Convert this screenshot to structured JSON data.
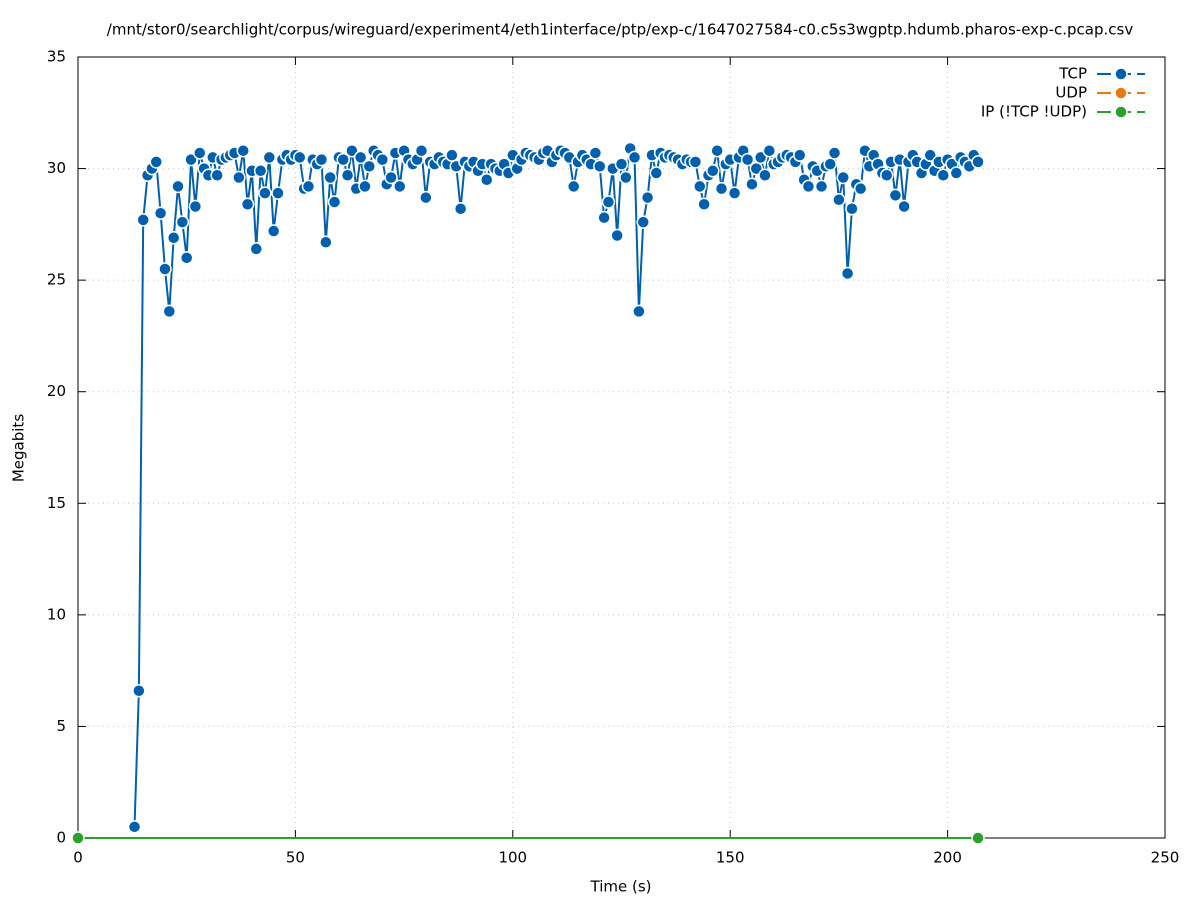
{
  "chart_data": {
    "type": "line",
    "title": "/mnt/stor0/searchlight/corpus/wireguard/experiment4/eth1interface/ptp/exp-c/1647027584-c0.c5s3wgptp.hdumb.pharos-exp-c.pcap.csv",
    "xlabel": "Time (s)",
    "ylabel": "Megabits",
    "xlim": [
      0,
      250
    ],
    "xticks": [
      0,
      50,
      100,
      150,
      200,
      250
    ],
    "ylim": [
      0,
      35
    ],
    "yticks": [
      0,
      5,
      10,
      15,
      20,
      25,
      30,
      35
    ],
    "grid": true,
    "legend": "top-right",
    "series": [
      {
        "name": "TCP",
        "color": "#0060ad",
        "x": [
          13,
          14,
          15,
          16,
          17,
          18,
          19,
          20,
          21,
          22,
          23,
          24,
          25,
          26,
          27,
          28,
          29,
          30,
          31,
          32,
          33,
          34,
          35,
          36,
          37,
          38,
          39,
          40,
          41,
          42,
          43,
          44,
          45,
          46,
          47,
          48,
          49,
          50,
          51,
          52,
          53,
          54,
          55,
          56,
          57,
          58,
          59,
          60,
          61,
          62,
          63,
          64,
          65,
          66,
          67,
          68,
          69,
          70,
          71,
          72,
          73,
          74,
          75,
          76,
          77,
          78,
          79,
          80,
          81,
          82,
          83,
          84,
          85,
          86,
          87,
          88,
          89,
          90,
          91,
          92,
          93,
          94,
          95,
          96,
          97,
          98,
          99,
          100,
          101,
          102,
          103,
          104,
          105,
          106,
          107,
          108,
          109,
          110,
          111,
          112,
          113,
          114,
          115,
          116,
          117,
          118,
          119,
          120,
          121,
          122,
          123,
          124,
          125,
          126,
          127,
          128,
          129,
          130,
          131,
          132,
          133,
          134,
          135,
          136,
          137,
          138,
          139,
          140,
          141,
          142,
          143,
          144,
          145,
          146,
          147,
          148,
          149,
          150,
          151,
          152,
          153,
          154,
          155,
          156,
          157,
          158,
          159,
          160,
          161,
          162,
          163,
          164,
          165,
          166,
          167,
          168,
          169,
          170,
          171,
          172,
          173,
          174,
          175,
          176,
          177,
          178,
          179,
          180,
          181,
          182,
          183,
          184,
          185,
          186,
          187,
          188,
          189,
          190,
          191,
          192,
          193,
          194,
          195,
          196,
          197,
          198,
          199,
          200,
          201,
          202,
          203,
          204,
          205,
          206,
          207
        ],
        "values": [
          0.5,
          6.6,
          27.7,
          29.7,
          30.0,
          30.3,
          28.0,
          25.5,
          23.6,
          26.9,
          29.2,
          27.6,
          26.0,
          30.4,
          28.3,
          30.7,
          30.0,
          29.7,
          30.5,
          29.7,
          30.4,
          30.5,
          30.6,
          30.7,
          29.6,
          30.8,
          28.4,
          29.9,
          26.4,
          29.9,
          28.9,
          30.5,
          27.2,
          28.9,
          30.4,
          30.6,
          30.4,
          30.6,
          30.5,
          29.1,
          29.2,
          30.4,
          30.2,
          30.4,
          26.7,
          29.6,
          28.5,
          30.5,
          30.4,
          29.7,
          30.8,
          29.1,
          30.5,
          29.2,
          30.1,
          30.8,
          30.6,
          30.4,
          29.3,
          29.6,
          30.7,
          29.2,
          30.8,
          30.4,
          30.2,
          30.4,
          30.8,
          28.7,
          30.3,
          30.2,
          30.5,
          30.3,
          30.2,
          30.6,
          30.1,
          28.2,
          30.3,
          30.1,
          30.3,
          29.9,
          30.2,
          29.5,
          30.2,
          30.0,
          29.9,
          30.2,
          29.8,
          30.6,
          30.0,
          30.4,
          30.7,
          30.6,
          30.5,
          30.4,
          30.7,
          30.8,
          30.3,
          30.6,
          30.8,
          30.7,
          30.5,
          29.2,
          30.3,
          30.6,
          30.4,
          30.2,
          30.7,
          30.1,
          27.8,
          28.5,
          30.0,
          27.0,
          30.2,
          29.6,
          30.9,
          30.5,
          23.6,
          27.6,
          28.7,
          30.6,
          29.8,
          30.7,
          30.5,
          30.6,
          30.5,
          30.4,
          30.2,
          30.4,
          30.3,
          30.3,
          29.2,
          28.4,
          29.7,
          29.9,
          30.8,
          29.1,
          30.2,
          30.4,
          28.9,
          30.5,
          30.8,
          30.4,
          29.3,
          30.0,
          30.5,
          29.7,
          30.8,
          30.2,
          30.3,
          30.5,
          30.6,
          30.5,
          30.3,
          30.6,
          29.5,
          29.2,
          30.1,
          29.9,
          29.2,
          30.1,
          30.2,
          30.7,
          28.6,
          29.6,
          25.3,
          28.2,
          29.3,
          29.1,
          30.8,
          30.1,
          30.6,
          30.2,
          29.8,
          29.7,
          30.3,
          28.8,
          30.4,
          28.3,
          30.3,
          30.6,
          30.3,
          29.8,
          30.2,
          30.6,
          29.9,
          30.3,
          29.7,
          30.4,
          30.2,
          29.8,
          30.5,
          30.3,
          30.1,
          30.6,
          30.3
        ]
      },
      {
        "name": "UDP",
        "color": "#e87a10",
        "x": [],
        "values": []
      },
      {
        "name": "IP (!TCP  !UDP)",
        "color": "#2ca02c",
        "x": [
          0,
          207
        ],
        "values": [
          0,
          0
        ]
      }
    ]
  }
}
